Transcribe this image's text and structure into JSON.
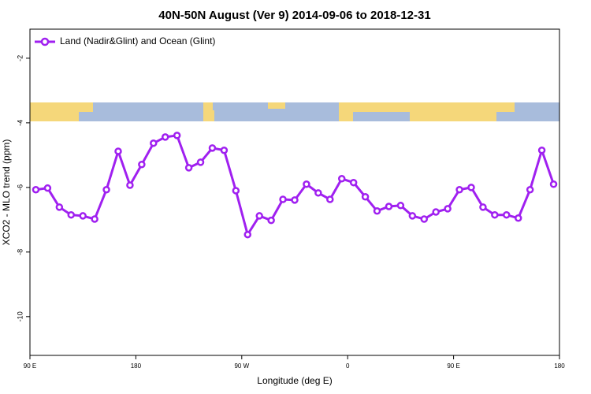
{
  "chart_data": {
    "type": "line",
    "title": "40N-50N August (Ver 9)   2014-09-06 to 2018-12-31",
    "x_label": "Longitude (deg E)",
    "y_label": "XCO2 - MLO trend (ppm)",
    "x": [
      95,
      105,
      115,
      125,
      135,
      145,
      155,
      165,
      175,
      185,
      195,
      205,
      215,
      225,
      235,
      245,
      255,
      265,
      275,
      285,
      295,
      305,
      315,
      325,
      335,
      345,
      355,
      365,
      375,
      385,
      395,
      405,
      415,
      425,
      435,
      445,
      455,
      465,
      475,
      485,
      495,
      505,
      515,
      525,
      535
    ],
    "series": [
      {
        "name": "Land (Nadir&Glint) and Ocean (Glint)",
        "color": "#a020f0",
        "values": [
          -6.07,
          -6.02,
          -6.61,
          -6.85,
          -6.88,
          -6.98,
          -6.07,
          -4.88,
          -5.93,
          -5.29,
          -4.63,
          -4.44,
          -4.39,
          -5.39,
          -5.22,
          -4.78,
          -4.85,
          -6.1,
          -7.46,
          -6.88,
          -7.02,
          -6.37,
          -6.39,
          -5.9,
          -6.17,
          -6.37,
          -5.73,
          -5.85,
          -6.29,
          -6.73,
          -6.59,
          -6.56,
          -6.88,
          -6.98,
          -6.76,
          -6.66,
          -6.07,
          -6.0,
          -6.61,
          -6.85,
          -6.85,
          -6.95,
          -6.07,
          -4.85,
          -5.9
        ]
      }
    ],
    "xlim": [
      90,
      540
    ],
    "xticks": [
      {
        "value": 90,
        "label": "90 E"
      },
      180,
      {
        "value": 270,
        "label": "90 W"
      },
      {
        "value": 360,
        "label": "0"
      },
      {
        "value": 450,
        "label": "90 E"
      },
      {
        "value": 540,
        "label": "180"
      }
    ],
    "ylim": [
      -11.2,
      -1.1
    ],
    "yticks": [
      -10,
      -8,
      -6,
      -4,
      -2
    ],
    "legend": "top-left"
  }
}
